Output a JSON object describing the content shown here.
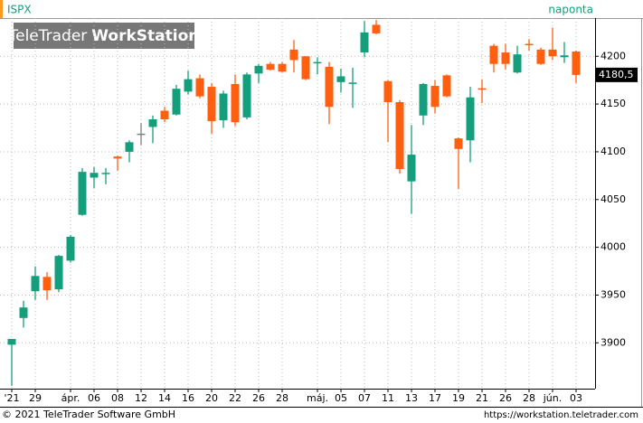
{
  "chart_data": {
    "type": "candlestick",
    "symbol": "ISPX",
    "period": "naponta",
    "logo": {
      "brand": "TeleTrader",
      "product": "WorkStation"
    },
    "footer": {
      "copyright": "© 2021 TeleTrader Software GmbH",
      "url": "https://workstation.teletrader.com"
    },
    "categories": [
      "'21",
      null,
      "29",
      null,
      null,
      "ápr.",
      null,
      "06",
      null,
      "08",
      null,
      "12",
      null,
      "14",
      null,
      "16",
      null,
      "20",
      null,
      "22",
      null,
      "26",
      null,
      "28",
      null,
      null,
      "máj.",
      null,
      "05",
      null,
      "07",
      null,
      "11",
      null,
      "13",
      null,
      "17",
      null,
      "19",
      null,
      "21",
      null,
      "26",
      null,
      "28",
      null,
      "jún.",
      null,
      "03"
    ],
    "series": [
      {
        "name": "ISPX",
        "open": [
          3898,
          3926,
          3954,
          3969,
          3956,
          3986,
          4034,
          4073,
          4077,
          4095,
          4100,
          4119,
          4126,
          4143,
          4139,
          4163,
          4177,
          4168,
          4133,
          4171,
          4136,
          4182,
          4192,
          4192,
          4207,
          4200,
          4193,
          4189,
          4173,
          4172,
          4204,
          4233,
          4174,
          4152,
          4069,
          4138,
          4169,
          4180,
          4114,
          4112,
          4166.5,
          4211,
          4204,
          4183,
          4213,
          4207,
          4207,
          4199,
          4205
        ],
        "high": [
          3904,
          3944,
          3980,
          3974,
          3992,
          4013,
          4083,
          4084,
          4083,
          4096,
          4112,
          4130,
          4138,
          4147,
          4170,
          4185,
          4181,
          4172,
          4164,
          4181,
          4183,
          4192,
          4194,
          4194,
          4217,
          4200,
          4199,
          4194,
          4187,
          4188,
          4237,
          4238,
          4175,
          4154,
          4128,
          4172,
          4175,
          4181,
          4115,
          4168,
          4176,
          4213,
          4213,
          4211,
          4218,
          4209,
          4230,
          4215,
          4206
        ],
        "low": [
          3855,
          3916,
          3945,
          3945,
          3953,
          3984,
          4033,
          4062,
          4066,
          4080,
          4089,
          4107,
          4109,
          4131,
          4138,
          4160,
          4156,
          4119,
          4125,
          4127,
          4134,
          4172,
          4185,
          4183,
          4183,
          4175,
          4181,
          4129,
          4162,
          4146,
          4199,
          4223,
          4110,
          4077,
          4035,
          4128,
          4140,
          4157,
          4061,
          4089,
          4151,
          4183,
          4186,
          4182,
          4206,
          4191,
          4196,
          4193,
          4172
        ],
        "close": [
          3904,
          3937,
          3970,
          3955,
          3991,
          4011,
          4079,
          4078,
          4078,
          4093,
          4110,
          4119,
          4134,
          4134,
          4166,
          4176,
          4158,
          4132,
          4161,
          4131,
          4181,
          4190,
          4186,
          4184,
          4196,
          4176,
          4194,
          4147,
          4179,
          4172.5,
          4225,
          4224,
          4152,
          4082,
          4097,
          4171,
          4147,
          4158,
          4103,
          4157,
          4166,
          4192,
          4192,
          4202,
          4212,
          4192,
          4200,
          4201,
          4180.5
        ],
        "up_color": "#139f7c",
        "down_color": "#ff5f0f",
        "flat_color": "#808080"
      }
    ],
    "last_label": "4180,5",
    "ylim": [
      3852,
      4240
    ],
    "yticks": [
      3900,
      3950,
      4000,
      4050,
      4100,
      4150,
      4200
    ],
    "grid": true
  }
}
